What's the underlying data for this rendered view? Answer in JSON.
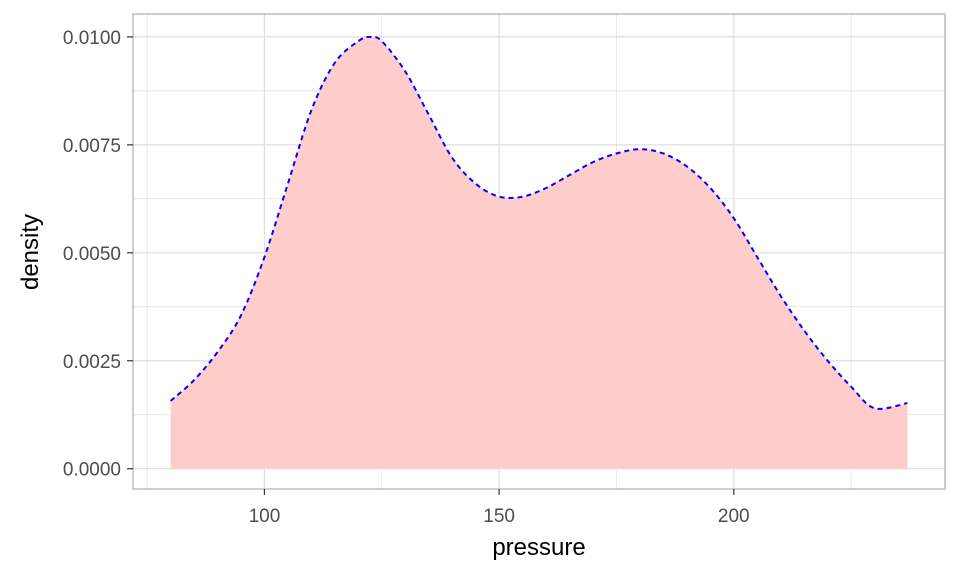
{
  "chart_data": {
    "type": "area",
    "xlabel": "pressure",
    "ylabel": "density",
    "xlim": [
      72,
      245
    ],
    "ylim": [
      -0.00047,
      0.01053
    ],
    "x_ticks": [
      {
        "value": 100,
        "label": "100"
      },
      {
        "value": 150,
        "label": "150"
      },
      {
        "value": 200,
        "label": "200"
      }
    ],
    "x_minor_ticks": [
      75,
      125,
      175,
      225
    ],
    "y_ticks": [
      {
        "value": 0.0,
        "label": "0.0000"
      },
      {
        "value": 0.0025,
        "label": "0.0025"
      },
      {
        "value": 0.005,
        "label": "0.0050"
      },
      {
        "value": 0.0075,
        "label": "0.0075"
      },
      {
        "value": 0.01,
        "label": "0.0100"
      }
    ],
    "y_minor_ticks": [
      0.00125,
      0.00375,
      0.00625,
      0.00875
    ],
    "grid": true,
    "legend": "none",
    "series": [
      {
        "x": [
          80,
          85,
          90,
          95,
          100,
          105,
          110,
          115,
          120,
          122.5,
          125,
          130,
          135,
          140,
          145,
          150,
          155,
          160,
          165,
          170,
          175,
          180,
          185,
          190,
          195,
          200,
          205,
          210,
          215,
          220,
          225,
          230,
          237
        ],
        "y": [
          0.00157,
          0.00205,
          0.0027,
          0.00355,
          0.0049,
          0.0066,
          0.0083,
          0.0094,
          0.0099,
          0.01,
          0.0099,
          0.0092,
          0.0082,
          0.0072,
          0.0066,
          0.0063,
          0.0063,
          0.0065,
          0.0068,
          0.0071,
          0.0073,
          0.0074,
          0.0073,
          0.007,
          0.0065,
          0.0058,
          0.0049,
          0.004,
          0.0032,
          0.0025,
          0.0019,
          0.0014,
          0.00152
        ]
      }
    ],
    "fill_color": "#ffcccc",
    "line_color": "#0000ff",
    "line_style": "dashed",
    "grid_color": "#dedede",
    "panel_border_color": "#b3b3b3",
    "axis_text_color": "#4d4d4d"
  }
}
